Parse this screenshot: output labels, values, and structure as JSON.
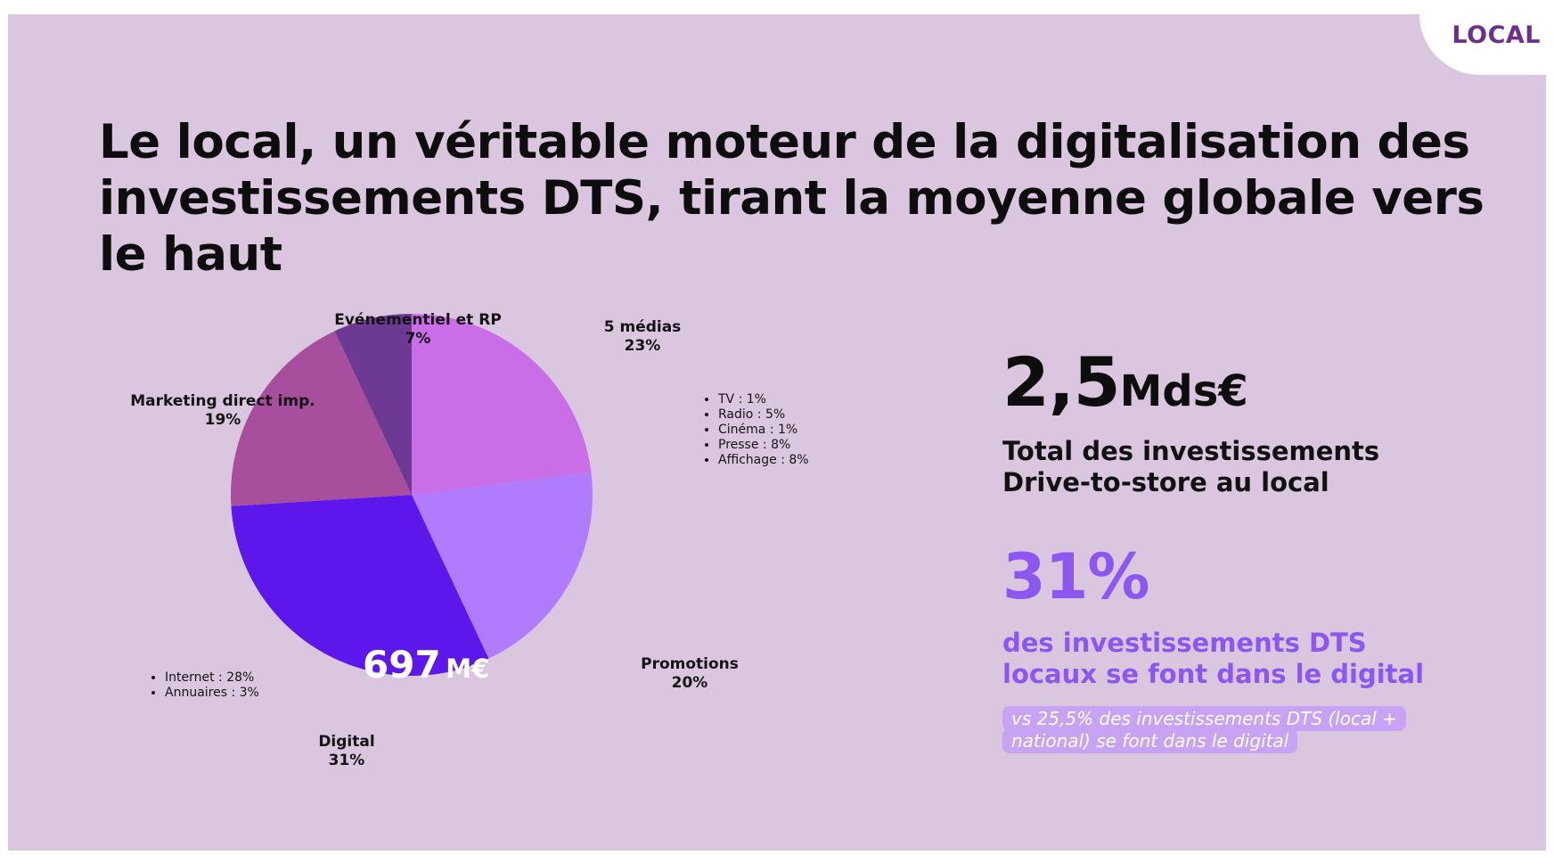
{
  "tag": "LOCAL",
  "title": "Le local, un véritable moteur de la digitalisation des investissements DTS, tirant la moyenne globale vers le haut",
  "chart_data": {
    "type": "pie",
    "center_label": {
      "value": "697",
      "unit": "M€"
    },
    "slices": [
      {
        "name": "5 médias",
        "value": 23,
        "label": "23%",
        "color": "#c96ee6"
      },
      {
        "name": "Promotions",
        "value": 20,
        "label": "20%",
        "color": "#b07bfe"
      },
      {
        "name": "Digital",
        "value": 31,
        "label": "31%",
        "color": "#5e17eb"
      },
      {
        "name": "Marketing direct imp.",
        "value": 19,
        "label": "19%",
        "color": "#a74e9d"
      },
      {
        "name": "Evénementiel et RP",
        "value": 7,
        "label": "7%",
        "color": "#6c3993"
      }
    ],
    "breakdowns": {
      "medias": [
        "TV : 1%",
        "Radio : 5%",
        "Cinéma : 1%",
        "Presse : 8%",
        "Affichage : 8%"
      ],
      "digital": [
        "Internet : 28%",
        "Annuaires : 3%"
      ]
    }
  },
  "kpi_total": {
    "value": "2,5",
    "unit": "Mds€",
    "description": "Total des investissements Drive-to-store au local"
  },
  "kpi_digital": {
    "value": "31%",
    "description": "des investissements DTS locaux se font dans le digital",
    "note": "vs 25,5% des investissements DTS (local + national) se font dans le digital",
    "color": "#8b57f0"
  }
}
